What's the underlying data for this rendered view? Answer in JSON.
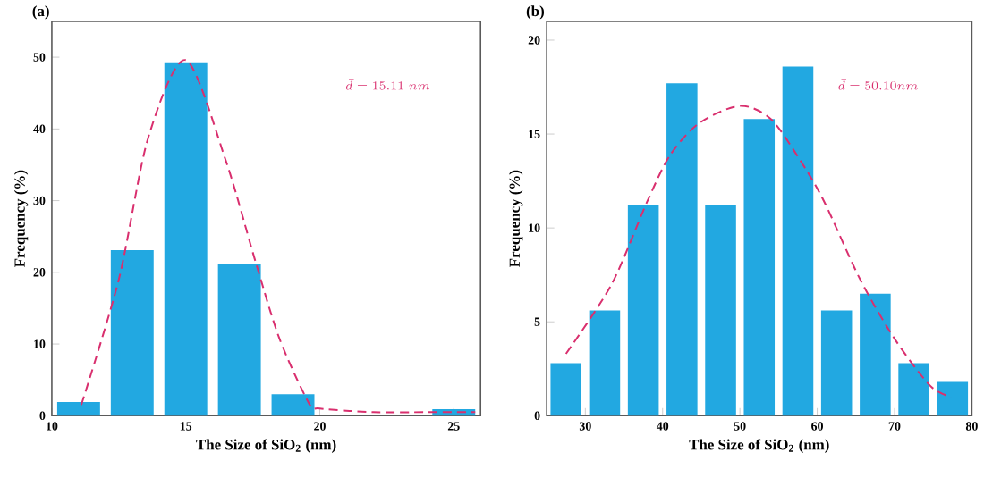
{
  "chart_data": [
    {
      "type": "histogram",
      "title": "(a)",
      "xlabel": "The Size of SiO$_{2}$ (nm)",
      "ylabel": "Frequency (%)",
      "annotations": [
        "\\bar{d}=15.11\\ nm"
      ],
      "bins": [
        10,
        12,
        14,
        16,
        18,
        20,
        22,
        24,
        26
      ],
      "values": [
        1.9,
        23.1,
        49.3,
        21.2,
        3.0,
        0,
        0,
        0.9
      ],
      "color": "#22a8e1",
      "series": [
        {
          "type": "line",
          "line_style": "dashed",
          "color": "#d92f6e",
          "x": [
            11.1,
            12.5,
            13.6,
            15,
            16.5,
            17.6,
            18.5,
            19.6,
            20,
            22,
            24,
            25.8
          ],
          "values": [
            1.5,
            19,
            38.8,
            49.6,
            35.5,
            21.5,
            10.7,
            1.7,
            1,
            0.5,
            0.5,
            0.5
          ]
        }
      ],
      "xlim": [
        10,
        26
      ],
      "ylim": [
        0,
        55
      ],
      "xticks": [
        10,
        15,
        20,
        25
      ],
      "yticks": [
        0,
        10,
        20,
        30,
        40,
        50
      ],
      "grid": false
    },
    {
      "type": "histogram",
      "title": "(b)",
      "xlabel": "The Size of SiO$_{2}$ (nm)",
      "ylabel": "Frequency (%)",
      "annotations": [
        "\\bar{d}=50.10nm"
      ],
      "bins": [
        25,
        30,
        35,
        40,
        45,
        50,
        55,
        60,
        65,
        70,
        75,
        80
      ],
      "values": [
        2.8,
        5.6,
        11.2,
        17.7,
        11.2,
        15.8,
        18.6,
        5.6,
        6.5,
        2.8,
        1.8
      ],
      "color": "#22a8e1",
      "series": [
        {
          "type": "line",
          "line_style": "dashed",
          "color": "#d92f6e",
          "x": [
            27.5,
            33.4,
            38,
            41,
            44.8,
            50,
            54,
            57.8,
            60.9,
            65.5,
            70,
            74.6,
            77.3
          ],
          "values": [
            3.3,
            7,
            11.4,
            13.9,
            15.6,
            16.5,
            15.8,
            13.6,
            11.4,
            7.3,
            4.1,
            1.6,
            1
          ]
        }
      ],
      "xlim": [
        25,
        80
      ],
      "ylim": [
        0,
        21
      ],
      "xticks": [
        30,
        40,
        50,
        60,
        70,
        80
      ],
      "yticks": [
        0,
        5,
        10,
        15,
        20
      ],
      "grid": false
    }
  ]
}
